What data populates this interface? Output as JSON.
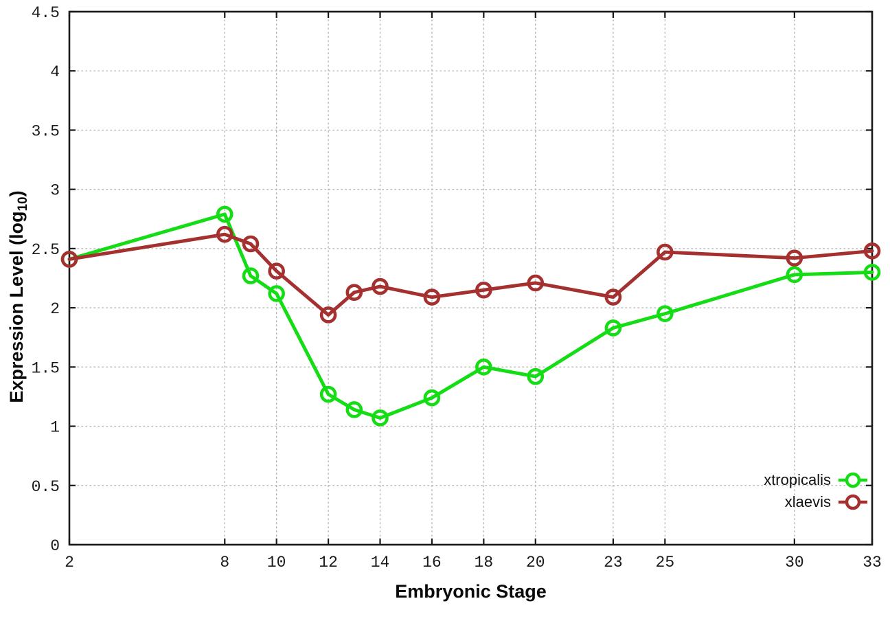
{
  "colors": {
    "background": "#ffffff",
    "axis": "#1a1a1a",
    "grid": "#b4b4b4",
    "xtropicalis_green": "#15dd15",
    "xlaevis_red": "#a53030"
  },
  "chart_data": {
    "type": "line",
    "x": [
      2,
      8,
      9,
      10,
      12,
      13,
      14,
      16,
      18,
      20,
      23,
      25,
      30,
      33
    ],
    "series": [
      {
        "name": "xtropicalis",
        "color": "#15dd15",
        "values": [
          2.41,
          2.79,
          2.27,
          2.12,
          1.27,
          1.14,
          1.07,
          1.24,
          1.5,
          1.42,
          1.83,
          1.95,
          2.28,
          2.3
        ]
      },
      {
        "name": "xlaevis",
        "color": "#a53030",
        "values": [
          2.41,
          2.62,
          2.54,
          2.31,
          1.94,
          2.13,
          2.18,
          2.09,
          2.15,
          2.21,
          2.09,
          2.47,
          2.42,
          2.48
        ]
      }
    ],
    "title": "",
    "xlabel": "Embryonic Stage",
    "ylabel": "Expression Level (log10)",
    "ylabel_parts": {
      "prefix": "Expression Level (log",
      "sub": "10",
      "suffix": ")"
    },
    "x_ticks": [
      2,
      8,
      10,
      12,
      14,
      16,
      18,
      20,
      23,
      25,
      30,
      33
    ],
    "y_ticks": [
      0,
      0.5,
      1,
      1.5,
      2,
      2.5,
      3,
      3.5,
      4,
      4.5
    ],
    "xlim": [
      2,
      33
    ],
    "ylim": [
      0,
      4.5
    ],
    "grid": true,
    "grid_style": "dotted",
    "marker": "open-circle",
    "legend_position": "inside-bottom-right"
  }
}
